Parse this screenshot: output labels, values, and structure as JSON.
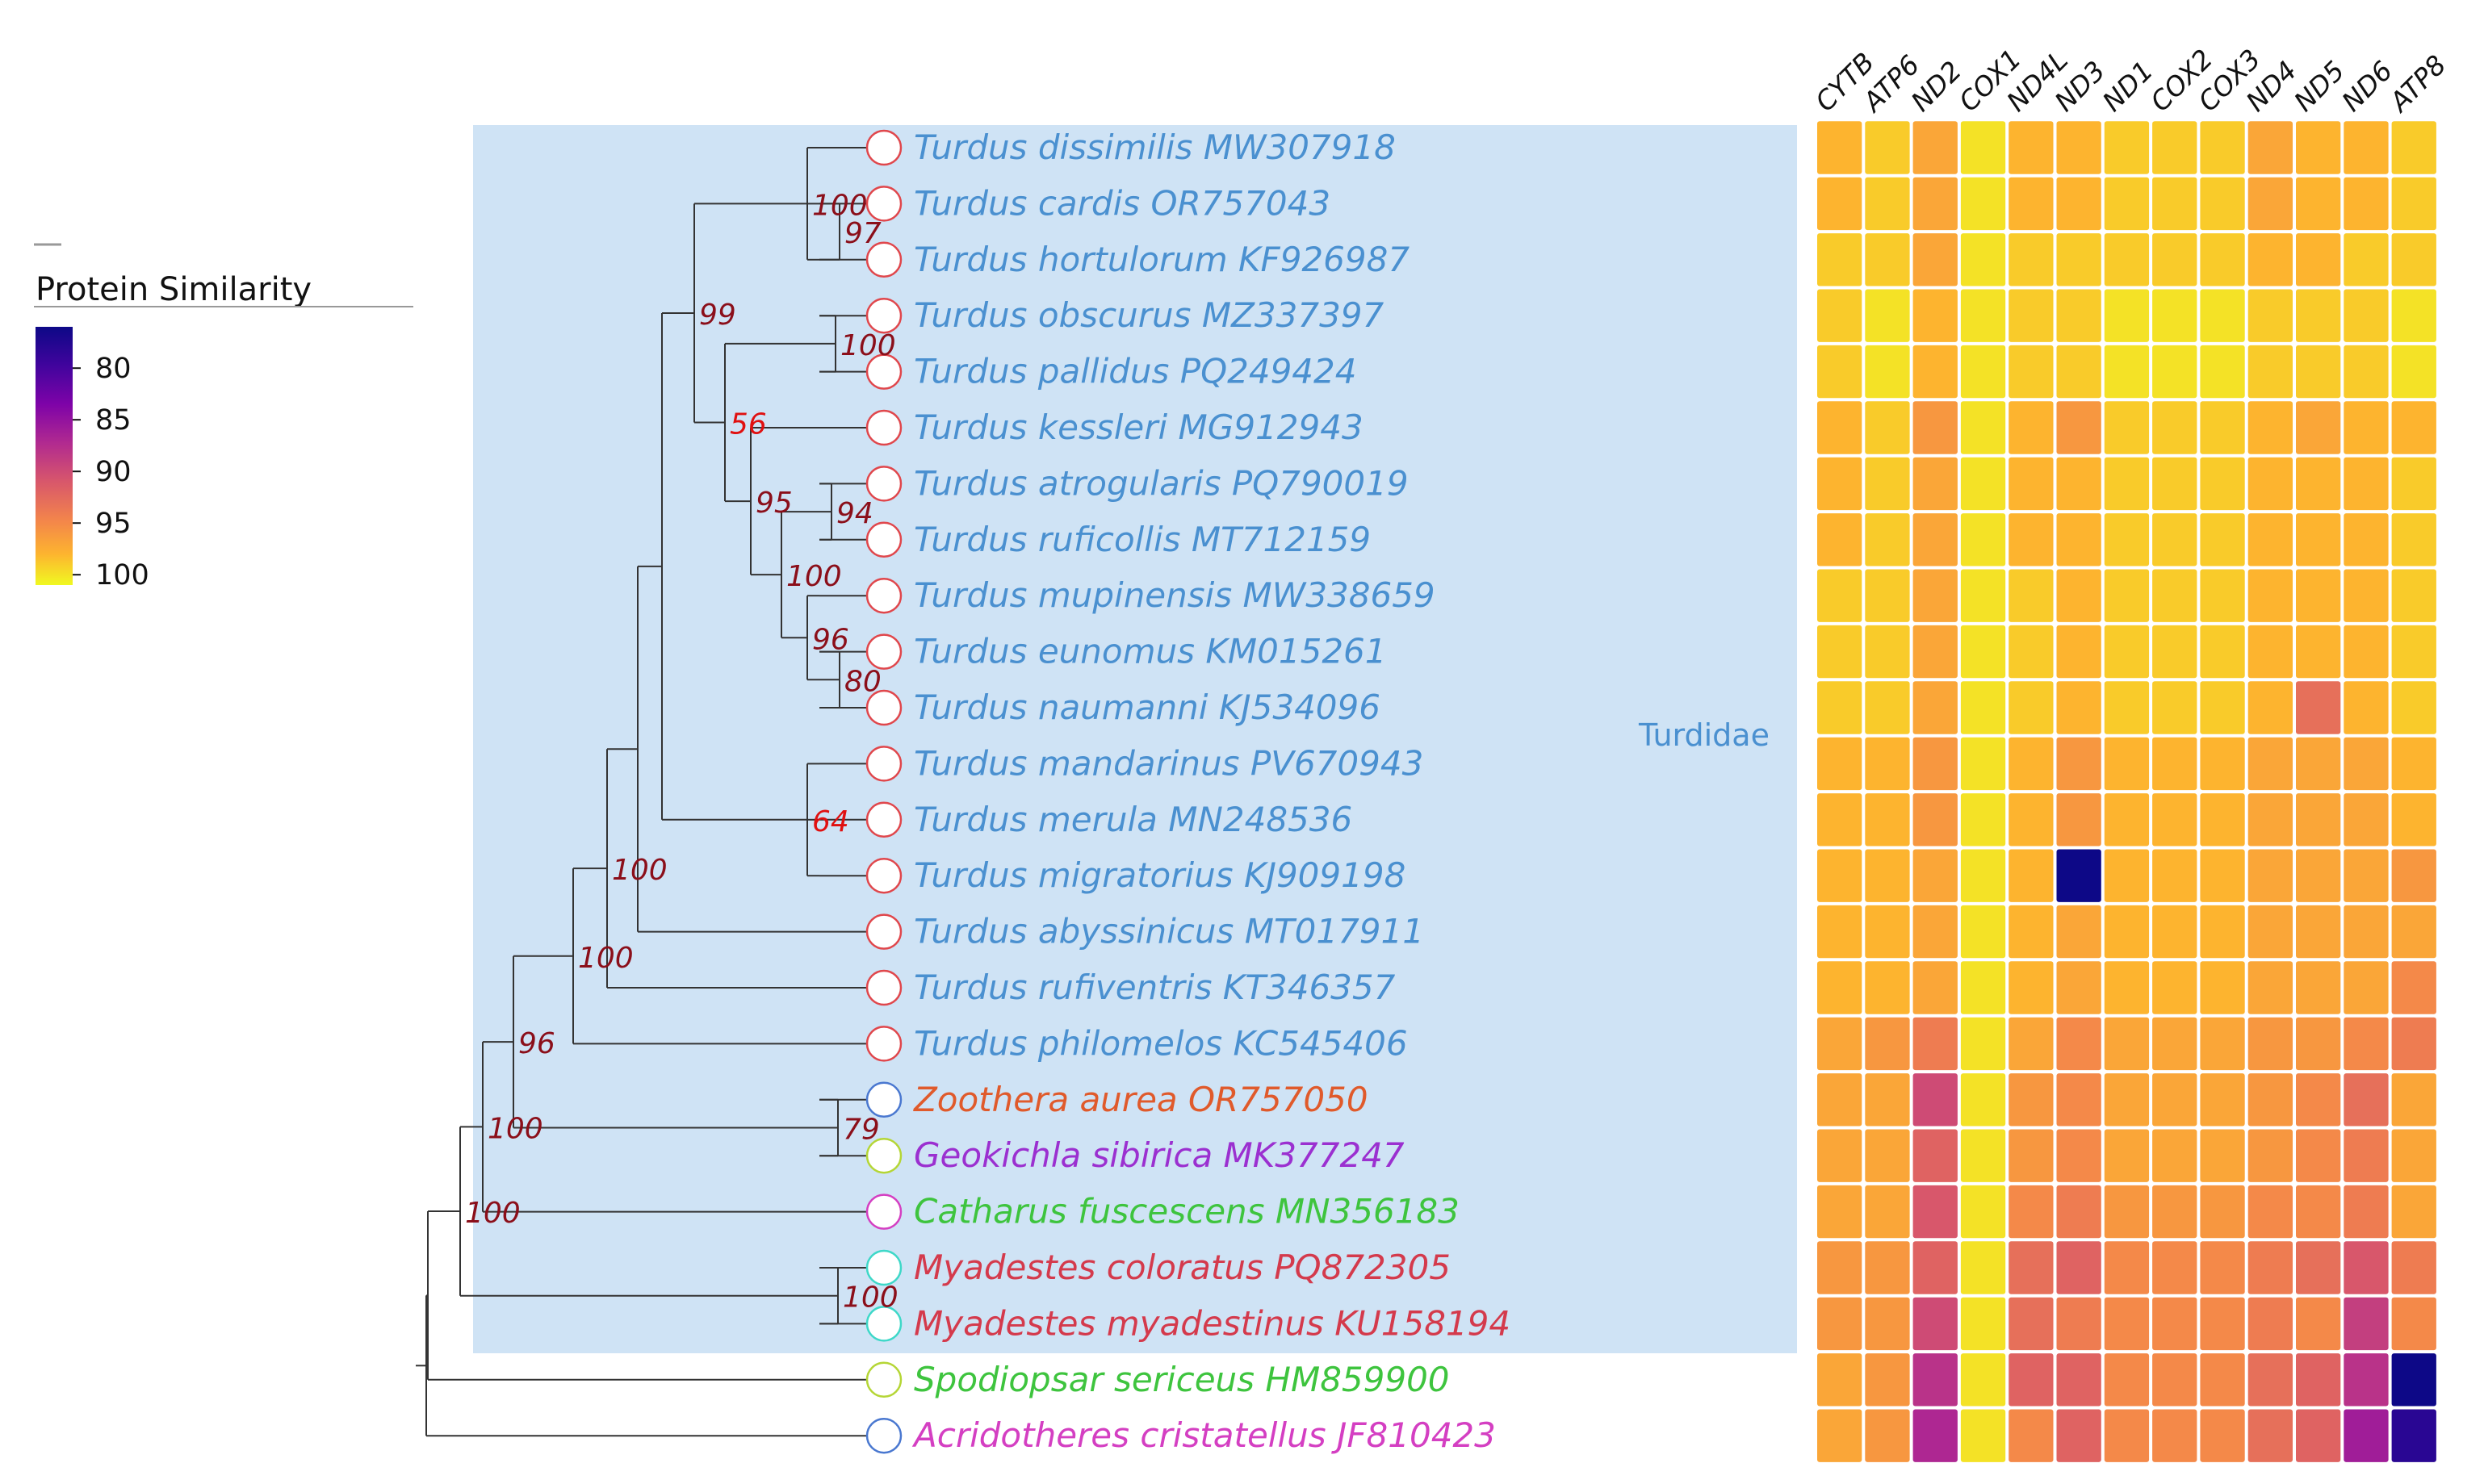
{
  "legend": {
    "title": "Protein Similarity",
    "ticks": [
      80,
      85,
      90,
      95,
      100
    ],
    "range": [
      76,
      101
    ],
    "colorscale": "plasma"
  },
  "clade": {
    "label": "Turdidae",
    "color": "#4a90d0",
    "fill": "#cfe3f5"
  },
  "colors": {
    "turdidae_text": "#4a90d0",
    "support_high": "#8b0f1a",
    "support_low": "#e01010",
    "branch": "#333333"
  },
  "genes": [
    "CYTB",
    "ATP6",
    "ND2",
    "COX1",
    "ND4L",
    "ND3",
    "ND1",
    "COX2",
    "COX3",
    "ND4",
    "ND5",
    "ND6",
    "ATP8"
  ],
  "taxa": [
    {
      "label": "Turdus dissimilis MW307918",
      "text_color": "#4a90d0",
      "node_color": "#e0474c"
    },
    {
      "label": "Turdus cardis OR757043",
      "text_color": "#4a90d0",
      "node_color": "#e0474c"
    },
    {
      "label": "Turdus hortulorum KF926987",
      "text_color": "#4a90d0",
      "node_color": "#e0474c"
    },
    {
      "label": "Turdus obscurus MZ337397",
      "text_color": "#4a90d0",
      "node_color": "#e0474c"
    },
    {
      "label": "Turdus pallidus PQ249424",
      "text_color": "#4a90d0",
      "node_color": "#e0474c"
    },
    {
      "label": "Turdus kessleri MG912943",
      "text_color": "#4a90d0",
      "node_color": "#e0474c"
    },
    {
      "label": "Turdus atrogularis PQ790019",
      "text_color": "#4a90d0",
      "node_color": "#e0474c"
    },
    {
      "label": "Turdus ruficollis MT712159",
      "text_color": "#4a90d0",
      "node_color": "#e0474c"
    },
    {
      "label": "Turdus mupinensis MW338659",
      "text_color": "#4a90d0",
      "node_color": "#e0474c"
    },
    {
      "label": "Turdus eunomus KM015261",
      "text_color": "#4a90d0",
      "node_color": "#e0474c"
    },
    {
      "label": "Turdus naumanni KJ534096",
      "text_color": "#4a90d0",
      "node_color": "#e0474c"
    },
    {
      "label": "Turdus mandarinus PV670943",
      "text_color": "#4a90d0",
      "node_color": "#e0474c"
    },
    {
      "label": "Turdus merula MN248536",
      "text_color": "#4a90d0",
      "node_color": "#e0474c"
    },
    {
      "label": "Turdus migratorius KJ909198",
      "text_color": "#4a90d0",
      "node_color": "#e0474c"
    },
    {
      "label": "Turdus abyssinicus MT017911",
      "text_color": "#4a90d0",
      "node_color": "#e0474c"
    },
    {
      "label": "Turdus rufiventris KT346357",
      "text_color": "#4a90d0",
      "node_color": "#e0474c"
    },
    {
      "label": "Turdus philomelos KC545406",
      "text_color": "#4a90d0",
      "node_color": "#e0474c"
    },
    {
      "label": "Zoothera aurea OR757050",
      "text_color": "#e05a2b",
      "node_color": "#4a78d0"
    },
    {
      "label": "Geokichla sibirica MK377247",
      "text_color": "#9b30d0",
      "node_color": "#b5d636"
    },
    {
      "label": "Catharus fuscescens MN356183",
      "text_color": "#3ec43e",
      "node_color": "#d43fc2"
    },
    {
      "label": "Myadestes coloratus PQ872305",
      "text_color": "#d43a4c",
      "node_color": "#3ed8c8"
    },
    {
      "label": "Myadestes myadestinus KU158194",
      "text_color": "#d43a4c",
      "node_color": "#3ed8c8"
    },
    {
      "label": "Spodiopsar sericeus HM859900",
      "text_color": "#3ec43e",
      "node_color": "#b5d636"
    },
    {
      "label": "Acridotheres cristatellus JF810423",
      "text_color": "#d43fc2",
      "node_color": "#4a78d0"
    }
  ],
  "tree": {
    "tips_x_level": 1108,
    "nodes": [
      {
        "id": "A",
        "children": [
          0,
          1,
          2
        ],
        "support": "100"
      },
      {
        "id": "B",
        "children": [
          1,
          2
        ],
        "support": "97"
      },
      {
        "id": "C",
        "children": [
          3,
          4
        ],
        "support": "100"
      },
      {
        "id": "D",
        "children": [
          6,
          7
        ],
        "support": "94"
      },
      {
        "id": "E",
        "children": [
          9,
          10
        ],
        "support": "80"
      },
      {
        "id": "F",
        "children": [
          8,
          "E"
        ],
        "support": "96"
      },
      {
        "id": "G",
        "children": [
          "D",
          "F"
        ],
        "support": "100"
      },
      {
        "id": "H",
        "children": [
          5,
          "G"
        ],
        "support": "95"
      },
      {
        "id": "I",
        "children": [
          "C",
          "H"
        ],
        "support": "56"
      },
      {
        "id": "J",
        "children": [
          "A",
          "I"
        ],
        "support": "99"
      },
      {
        "id": "K",
        "children": [
          11,
          12,
          13
        ],
        "support": "64"
      },
      {
        "id": "L",
        "children": [
          "J",
          "K"
        ],
        "support": ""
      },
      {
        "id": "M",
        "children": [
          "L",
          14
        ],
        "support": ""
      },
      {
        "id": "N",
        "children": [
          "M",
          15
        ],
        "support": "100"
      },
      {
        "id": "O",
        "children": [
          "N",
          16
        ],
        "support": "100"
      },
      {
        "id": "P",
        "children": [
          17,
          18
        ],
        "support": "79"
      },
      {
        "id": "Q",
        "children": [
          "O",
          "P"
        ],
        "support": "96"
      },
      {
        "id": "R",
        "children": [
          "Q",
          19
        ],
        "support": "100"
      },
      {
        "id": "S",
        "children": [
          20,
          21
        ],
        "support": "100"
      },
      {
        "id": "T",
        "children": [
          "R",
          "S"
        ],
        "support": "100"
      },
      {
        "id": "U",
        "children": [
          "T",
          22
        ],
        "support": ""
      },
      {
        "id": "V",
        "children": [
          "U",
          23
        ],
        "support": ""
      }
    ]
  },
  "chart_data": {
    "type": "heatmap",
    "title": "Protein Similarity",
    "x_categories": [
      "CYTB",
      "ATP6",
      "ND2",
      "COX1",
      "ND4L",
      "ND3",
      "ND1",
      "COX2",
      "COX3",
      "ND4",
      "ND5",
      "ND6",
      "ATP8"
    ],
    "y_categories": [
      "Turdus dissimilis MW307918",
      "Turdus cardis OR757043",
      "Turdus hortulorum KF926987",
      "Turdus obscurus MZ337397",
      "Turdus pallidus PQ249424",
      "Turdus kessleri MG912943",
      "Turdus atrogularis PQ790019",
      "Turdus ruficollis MT712159",
      "Turdus mupinensis MW338659",
      "Turdus eunomus KM015261",
      "Turdus naumanni KJ534096",
      "Turdus mandarinus PV670943",
      "Turdus merula MN248536",
      "Turdus migratorius KJ909198",
      "Turdus abyssinicus MT017911",
      "Turdus rufiventris KT346357",
      "Turdus philomelos KC545406",
      "Zoothera aurea OR757050",
      "Geokichla sibirica MK377247",
      "Catharus fuscescens MN356183",
      "Myadestes coloratus PQ872305",
      "Myadestes myadestinus KU158194",
      "Spodiopsar sericeus HM859900",
      "Acridotheres cristatellus JF810423"
    ],
    "values": [
      [
        98,
        99,
        97,
        100,
        98,
        98,
        99,
        99,
        99,
        97,
        98,
        98,
        99
      ],
      [
        98,
        99,
        97,
        100,
        98,
        98,
        99,
        99,
        99,
        97,
        98,
        98,
        99
      ],
      [
        99,
        99,
        97,
        100,
        99,
        99,
        99,
        99,
        99,
        98,
        98,
        99,
        99
      ],
      [
        99,
        100,
        98,
        100,
        99,
        99,
        100,
        100,
        100,
        99,
        99,
        99,
        100
      ],
      [
        99,
        100,
        98,
        100,
        99,
        99,
        100,
        100,
        100,
        99,
        99,
        99,
        100
      ],
      [
        98,
        99,
        96,
        100,
        98,
        96,
        99,
        99,
        99,
        98,
        97,
        98,
        98
      ],
      [
        98,
        99,
        97,
        100,
        98,
        98,
        99,
        99,
        99,
        98,
        98,
        98,
        99
      ],
      [
        98,
        99,
        97,
        100,
        98,
        98,
        99,
        99,
        99,
        98,
        98,
        98,
        99
      ],
      [
        99,
        99,
        97,
        100,
        99,
        98,
        99,
        99,
        99,
        98,
        98,
        98,
        99
      ],
      [
        99,
        99,
        97,
        100,
        99,
        98,
        99,
        99,
        99,
        98,
        98,
        98,
        99
      ],
      [
        99,
        99,
        97,
        100,
        99,
        98,
        99,
        99,
        99,
        98,
        93,
        98,
        99
      ],
      [
        98,
        98,
        96,
        100,
        98,
        96,
        98,
        98,
        98,
        97,
        97,
        97,
        98
      ],
      [
        98,
        98,
        96,
        100,
        98,
        96,
        98,
        98,
        98,
        97,
        97,
        97,
        98
      ],
      [
        98,
        98,
        97,
        100,
        98,
        76,
        98,
        98,
        98,
        97,
        97,
        97,
        96
      ],
      [
        98,
        98,
        97,
        100,
        98,
        97,
        98,
        98,
        98,
        97,
        97,
        97,
        97
      ],
      [
        98,
        98,
        97,
        100,
        98,
        97,
        98,
        98,
        98,
        97,
        97,
        97,
        95
      ],
      [
        97,
        96,
        94,
        100,
        97,
        95,
        97,
        97,
        97,
        96,
        96,
        95,
        94
      ],
      [
        97,
        97,
        90,
        100,
        96,
        95,
        97,
        97,
        97,
        96,
        95,
        93,
        97
      ],
      [
        97,
        97,
        92,
        100,
        96,
        95,
        97,
        97,
        97,
        96,
        95,
        94,
        97
      ],
      [
        97,
        97,
        91,
        100,
        95,
        94,
        96,
        96,
        96,
        95,
        95,
        94,
        97
      ],
      [
        96,
        96,
        92,
        100,
        93,
        92,
        95,
        95,
        95,
        94,
        93,
        91,
        94
      ],
      [
        96,
        96,
        90,
        100,
        93,
        94,
        95,
        95,
        95,
        94,
        95,
        89,
        95
      ],
      [
        97,
        96,
        88,
        100,
        92,
        92,
        95,
        95,
        95,
        93,
        92,
        88,
        76
      ],
      [
        97,
        96,
        87,
        100,
        95,
        92,
        95,
        95,
        95,
        93,
        92,
        86,
        78
      ]
    ]
  }
}
